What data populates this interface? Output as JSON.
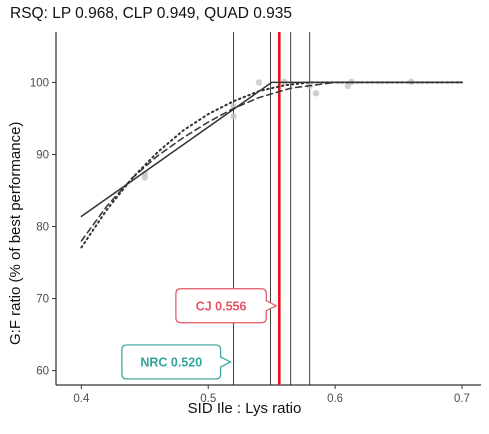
{
  "chart_data": {
    "type": "line",
    "title": "RSQ: LP 0.968, CLP 0.949, QUAD 0.935",
    "xlabel": "SID Ile : Lys ratio",
    "ylabel": "G:F ratio (% of best performance)",
    "xlim": [
      0.38,
      0.715
    ],
    "ylim": [
      58,
      107
    ],
    "x_ticks": [
      0.4,
      0.5,
      0.6,
      0.7
    ],
    "y_ticks": [
      60,
      70,
      80,
      90,
      100
    ],
    "x_tick_labels": [
      "0.4",
      "0.5",
      "0.6",
      "0.7"
    ],
    "y_tick_labels": [
      "60",
      "70",
      "80",
      "90",
      "100"
    ],
    "grid": false,
    "points": [
      {
        "x": 0.45,
        "y": 86.8
      },
      {
        "x": 0.45,
        "y": 87.3
      },
      {
        "x": 0.52,
        "y": 95.3
      },
      {
        "x": 0.52,
        "y": 96.7
      },
      {
        "x": 0.54,
        "y": 100.0
      },
      {
        "x": 0.56,
        "y": 100.1
      },
      {
        "x": 0.58,
        "y": 99.5
      },
      {
        "x": 0.585,
        "y": 98.5
      },
      {
        "x": 0.61,
        "y": 99.5
      },
      {
        "x": 0.613,
        "y": 100.1
      },
      {
        "x": 0.66,
        "y": 100.1
      }
    ],
    "series": [
      {
        "name": "LP",
        "style": "solid",
        "x": [
          0.4,
          0.55,
          0.7
        ],
        "y": [
          81.4,
          100,
          100
        ]
      },
      {
        "name": "CLP",
        "style": "dashed",
        "x": [
          0.4,
          0.42,
          0.44,
          0.46,
          0.48,
          0.5,
          0.52,
          0.54,
          0.565,
          0.6,
          0.7
        ],
        "y": [
          78.0,
          82.8,
          86.7,
          89.8,
          92.3,
          94.5,
          96.4,
          97.9,
          99.2,
          100,
          100
        ]
      },
      {
        "name": "QUAD",
        "style": "dotted",
        "x": [
          0.4,
          0.42,
          0.44,
          0.46,
          0.48,
          0.5,
          0.52,
          0.54,
          0.56,
          0.58,
          0.7
        ],
        "y": [
          77.1,
          82.3,
          86.7,
          90.3,
          93.3,
          95.6,
          97.4,
          98.8,
          99.6,
          100,
          100
        ]
      }
    ],
    "reference_lines": [
      0.52,
      0.549,
      0.565,
      0.58
    ],
    "highlight_line": {
      "x": 0.556,
      "color": "#e8121a"
    },
    "annotations": [
      {
        "label": "CJ 0.556",
        "x": 0.556,
        "y": 69,
        "color": "#e25561"
      },
      {
        "label": "NRC 0.520",
        "x": 0.52,
        "y": 61.2,
        "color": "#34a49a"
      }
    ]
  }
}
